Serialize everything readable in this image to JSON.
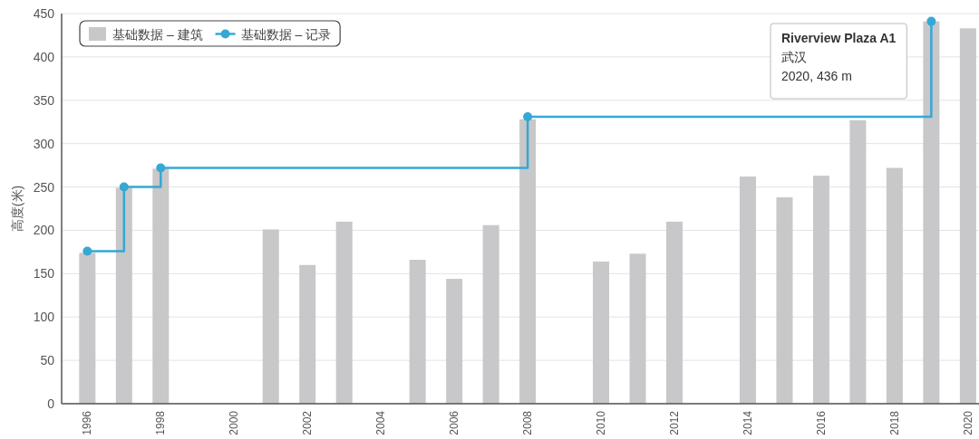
{
  "chart_data": {
    "type": "bar",
    "ylabel": "高度(米)",
    "x": [
      1996,
      1997,
      1998,
      2001,
      2002,
      2003,
      2005,
      2006,
      2007,
      2008,
      2010,
      2011,
      2012,
      2014,
      2015,
      2016,
      2017,
      2018,
      2019,
      2020
    ],
    "series": [
      {
        "name": "基础数据 – 建筑",
        "color": "#c8c7c9",
        "values": [
          174,
          249,
          271,
          201,
          160,
          210,
          166,
          144,
          206,
          328,
          164,
          173,
          210,
          262,
          238,
          263,
          327,
          272,
          441,
          433
        ]
      },
      {
        "name": "基础数据 – 记录",
        "type": "step",
        "color": "#35a8d4",
        "x": [
          1996,
          1997,
          1998,
          2008,
          2019
        ],
        "values": [
          176,
          250,
          272,
          331,
          441
        ]
      }
    ],
    "xlim": [
      1995.3,
      2020.3
    ],
    "xticks": [
      1996,
      1998,
      2000,
      2002,
      2004,
      2006,
      2008,
      2010,
      2012,
      2014,
      2016,
      2018,
      2020
    ],
    "ylim": [
      0,
      450
    ],
    "yticks": [
      0,
      50,
      100,
      150,
      200,
      250,
      300,
      350,
      400,
      450
    ],
    "grid": "y",
    "legend": "top left",
    "marker": "circle",
    "annotations": [
      "Riverview Plaza A1",
      "武汉",
      "2020, 436 m"
    ]
  }
}
